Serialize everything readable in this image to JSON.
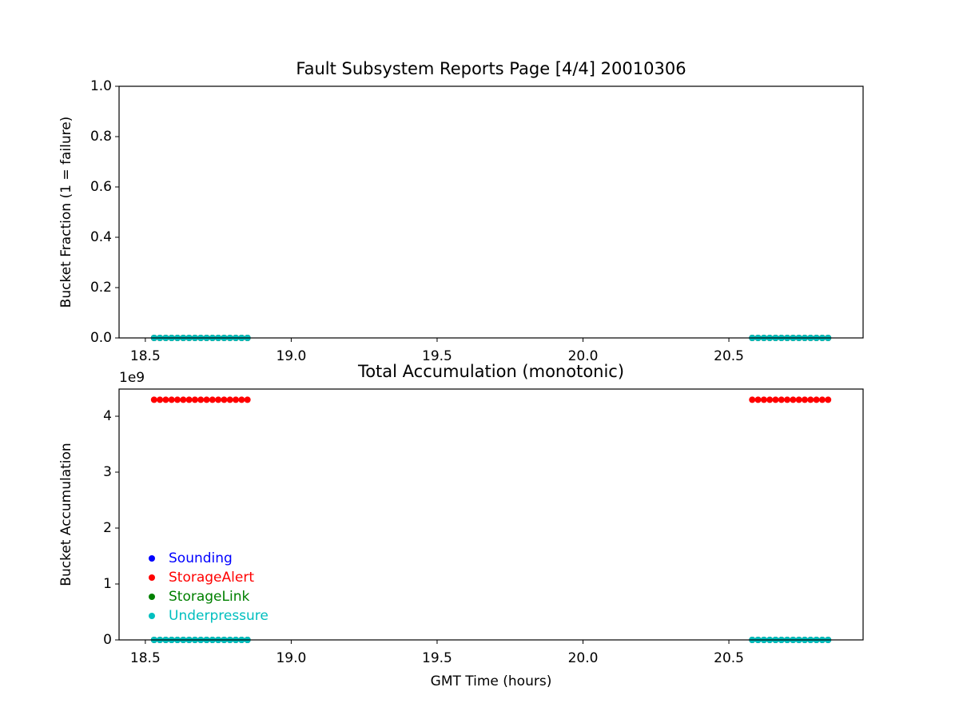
{
  "chart_data": [
    {
      "type": "scatter",
      "title": "Fault Subsystem Reports Page [4/4] 20010306",
      "y_label": "Bucket Fraction (1 = failure)",
      "x": [
        18.53,
        18.55,
        18.57,
        18.59,
        18.61,
        18.63,
        18.65,
        18.67,
        18.69,
        18.71,
        18.73,
        18.75,
        18.77,
        18.79,
        18.81,
        18.83,
        18.85,
        20.58,
        20.6,
        20.62,
        20.64,
        20.66,
        20.68,
        20.7,
        20.72,
        20.74,
        20.76,
        20.78,
        20.8,
        20.82,
        20.84
      ],
      "series": [
        {
          "name": "Sounding",
          "color": "#0000ff",
          "values": [
            0,
            0,
            0,
            0,
            0,
            0,
            0,
            0,
            0,
            0,
            0,
            0,
            0,
            0,
            0,
            0,
            0,
            0,
            0,
            0,
            0,
            0,
            0,
            0,
            0,
            0,
            0,
            0,
            0,
            0,
            0
          ]
        },
        {
          "name": "StorageAlert",
          "color": "#ff0000",
          "values": [
            0,
            0,
            0,
            0,
            0,
            0,
            0,
            0,
            0,
            0,
            0,
            0,
            0,
            0,
            0,
            0,
            0,
            0,
            0,
            0,
            0,
            0,
            0,
            0,
            0,
            0,
            0,
            0,
            0,
            0,
            0
          ]
        },
        {
          "name": "StorageLink",
          "color": "#008000",
          "values": [
            0,
            0,
            0,
            0,
            0,
            0,
            0,
            0,
            0,
            0,
            0,
            0,
            0,
            0,
            0,
            0,
            0,
            0,
            0,
            0,
            0,
            0,
            0,
            0,
            0,
            0,
            0,
            0,
            0,
            0,
            0
          ]
        },
        {
          "name": "Underpressure",
          "color": "#00bfbf",
          "values": [
            0,
            0,
            0,
            0,
            0,
            0,
            0,
            0,
            0,
            0,
            0,
            0,
            0,
            0,
            0,
            0,
            0,
            0,
            0,
            0,
            0,
            0,
            0,
            0,
            0,
            0,
            0,
            0,
            0,
            0,
            0
          ]
        }
      ],
      "xlim": [
        18.41,
        20.96
      ],
      "xticks": [
        18.5,
        {
          "value": 19.0,
          "label": "19.0"
        },
        19.5,
        {
          "value": 20.0,
          "label": "20.0"
        },
        20.5
      ],
      "ylim": [
        0,
        1
      ],
      "yticks": [
        {
          "value": 0,
          "label": "0.0"
        },
        0.2,
        0.4,
        0.6,
        0.8,
        {
          "value": 1,
          "label": "1.0"
        }
      ]
    },
    {
      "type": "scatter",
      "title": "Total Accumulation (monotonic)",
      "x_label": "GMT Time (hours)",
      "y_label": "Bucket Accumulation",
      "y_offset_label": "1e9",
      "x": [
        18.53,
        18.55,
        18.57,
        18.59,
        18.61,
        18.63,
        18.65,
        18.67,
        18.69,
        18.71,
        18.73,
        18.75,
        18.77,
        18.79,
        18.81,
        18.83,
        18.85,
        20.58,
        20.6,
        20.62,
        20.64,
        20.66,
        20.68,
        20.7,
        20.72,
        20.74,
        20.76,
        20.78,
        20.8,
        20.82,
        20.84
      ],
      "series": [
        {
          "name": "Sounding",
          "color": "#0000ff",
          "values": [
            0,
            0,
            0,
            0,
            0,
            0,
            0,
            0,
            0,
            0,
            0,
            0,
            0,
            0,
            0,
            0,
            0,
            0,
            0,
            0,
            0,
            0,
            0,
            0,
            0,
            0,
            0,
            0,
            0,
            0,
            0
          ]
        },
        {
          "name": "StorageAlert",
          "color": "#ff0000",
          "values": [
            4294967295,
            4294967295,
            4294967295,
            4294967295,
            4294967295,
            4294967295,
            4294967295,
            4294967295,
            4294967295,
            4294967295,
            4294967295,
            4294967295,
            4294967295,
            4294967295,
            4294967295,
            4294967295,
            4294967295,
            4294967295,
            4294967295,
            4294967295,
            4294967295,
            4294967295,
            4294967295,
            4294967295,
            4294967295,
            4294967295,
            4294967295,
            4294967295,
            4294967295,
            4294967295,
            4294967295
          ]
        },
        {
          "name": "StorageLink",
          "color": "#008000",
          "values": [
            0,
            0,
            0,
            0,
            0,
            0,
            0,
            0,
            0,
            0,
            0,
            0,
            0,
            0,
            0,
            0,
            0,
            0,
            0,
            0,
            0,
            0,
            0,
            0,
            0,
            0,
            0,
            0,
            0,
            0,
            0
          ]
        },
        {
          "name": "Underpressure",
          "color": "#00bfbf",
          "values": [
            0,
            0,
            0,
            0,
            0,
            0,
            0,
            0,
            0,
            0,
            0,
            0,
            0,
            0,
            0,
            0,
            0,
            0,
            0,
            0,
            0,
            0,
            0,
            0,
            0,
            0,
            0,
            0,
            0,
            0,
            0
          ]
        }
      ],
      "xlim": [
        18.41,
        20.96
      ],
      "xticks": [
        18.5,
        {
          "value": 19.0,
          "label": "19.0"
        },
        19.5,
        {
          "value": 20.0,
          "label": "20.0"
        },
        20.5
      ],
      "ylim": [
        0,
        4486000000
      ],
      "yticks": [
        {
          "value": 0,
          "label": "0"
        },
        {
          "value": 1000000000,
          "label": "1"
        },
        {
          "value": 2000000000,
          "label": "2"
        },
        {
          "value": 3000000000,
          "label": "3"
        },
        {
          "value": 4000000000,
          "label": "4"
        }
      ],
      "legend": "lower left"
    }
  ]
}
